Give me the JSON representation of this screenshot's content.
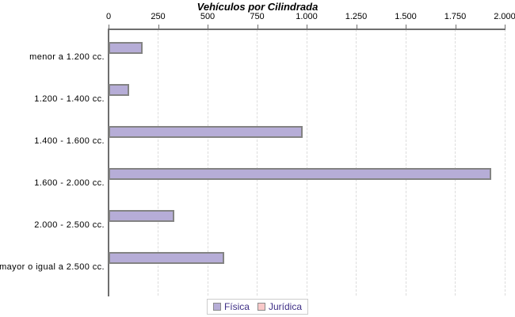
{
  "chart_data": {
    "type": "bar",
    "orientation": "horizontal",
    "title": "Vehículos por Cilindrada",
    "categories": [
      "menor a 1.200 cc.",
      "1.200 - 1.400 cc.",
      "1.400 - 1.600 cc.",
      "1.600 - 2.000 cc.",
      "2.000 - 2.500 cc.",
      "mayor o igual a 2.500 cc."
    ],
    "series": [
      {
        "name": "Física",
        "color": "#b6add7",
        "border": "#838383",
        "values": [
          170,
          105,
          980,
          1930,
          330,
          585
        ]
      },
      {
        "name": "Jurídica",
        "color": "#f9c9c9",
        "border": "#b59a9a",
        "values": [
          0,
          0,
          0,
          0,
          0,
          0
        ]
      }
    ],
    "xlim": [
      0,
      2000
    ],
    "xticks": [
      0,
      250,
      500,
      750,
      1000,
      1250,
      1500,
      1750,
      2000
    ],
    "xtick_labels": [
      "0",
      "250",
      "500",
      "750",
      "1.000",
      "1.250",
      "1.500",
      "1.750",
      "2.000"
    ],
    "grid": "vertical-dashed",
    "legend_position": "bottom",
    "xlabel": "",
    "ylabel": ""
  },
  "colors": {
    "axis": "#6e6e6e",
    "grid": "#dcdcdc",
    "bar_border": "#838383",
    "legend_text": "#3d2e85",
    "legend_border": "#cccccc",
    "title": "#000000",
    "label": "#000000",
    "background": "#ffffff"
  }
}
